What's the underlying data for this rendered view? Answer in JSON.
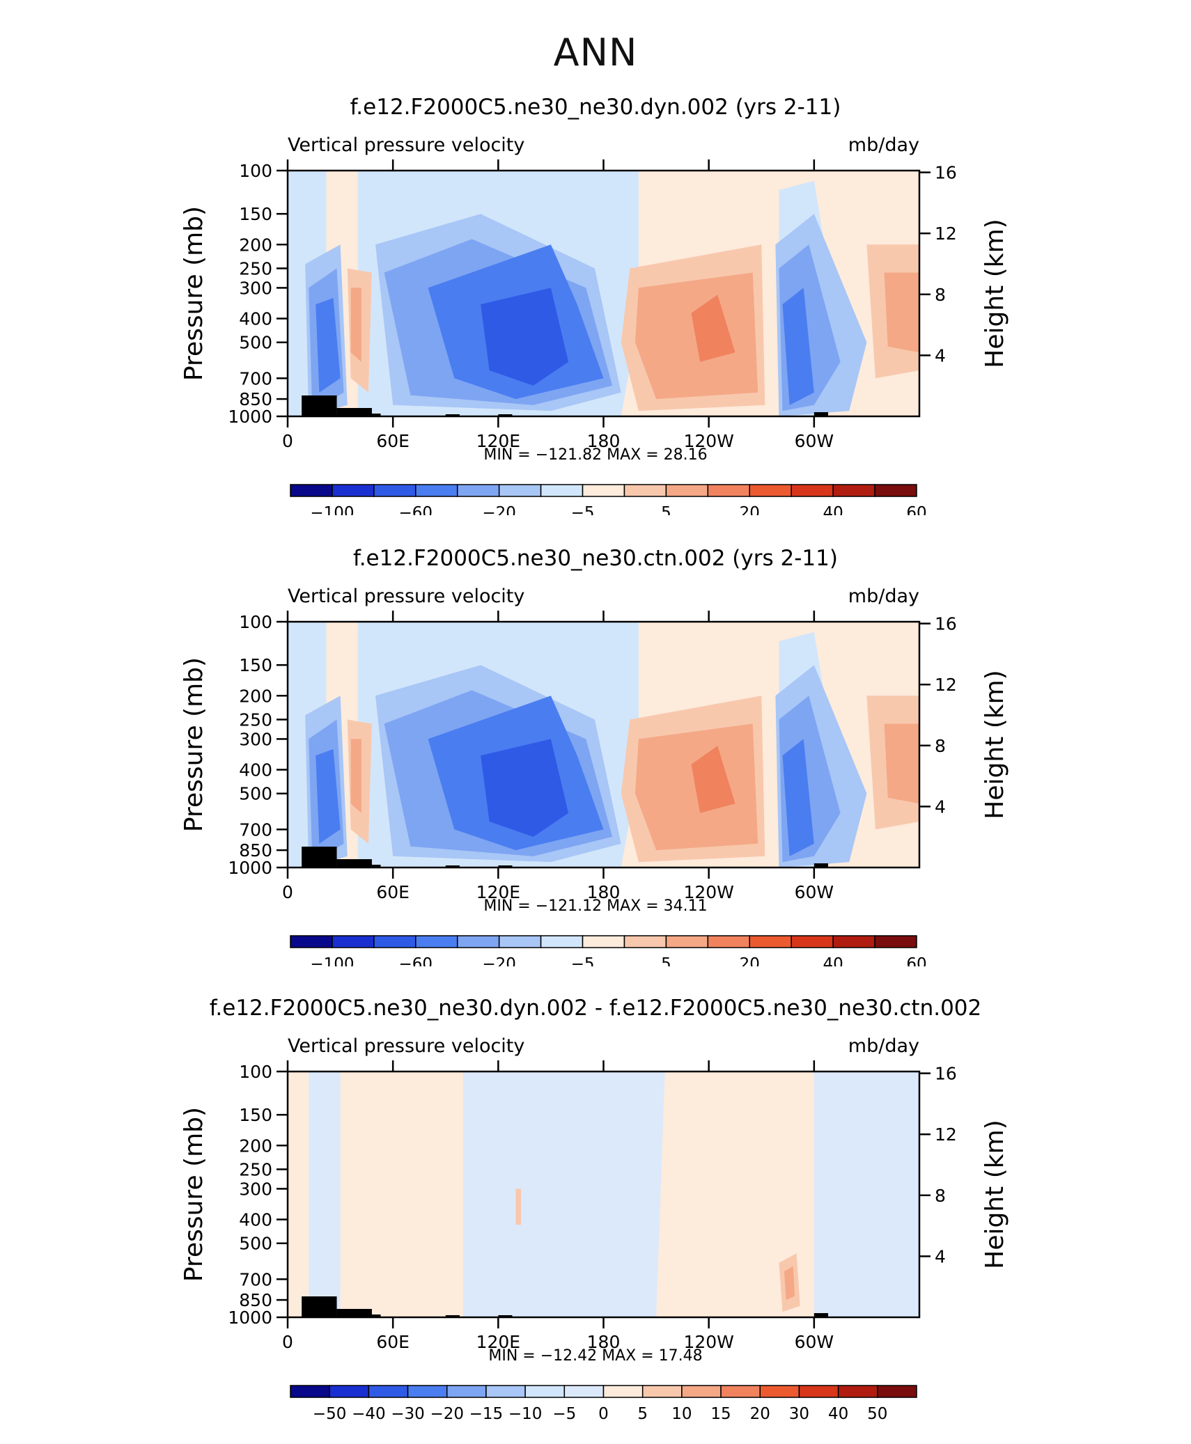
{
  "page": {
    "title": "ANN"
  },
  "chart_data": [
    {
      "type": "heatmap",
      "title": "f.e12.F2000C5.ne30_ne30.dyn.002 (yrs 2-11)",
      "subtitle_left": "Vertical pressure velocity",
      "subtitle_right": "mb/day",
      "ylabel": "Pressure (mb)",
      "ylabel_right": "Height (km)",
      "x_ticks": [
        "0",
        "60E",
        "120E",
        "180",
        "120W",
        "60W"
      ],
      "y_ticks": [
        "100",
        "150",
        "200",
        "250",
        "300",
        "400",
        "500",
        "700",
        "850",
        "1000"
      ],
      "y_right_ticks": [
        "16",
        "12",
        "8",
        "4"
      ],
      "ylim": [
        1000,
        100
      ],
      "xlim": [
        0,
        360
      ],
      "stats": "MIN = −121.82   MAX =   28.16",
      "colorbar_labels": [
        "−100",
        "−60",
        "−20",
        "−5",
        "5",
        "20",
        "40",
        "60"
      ],
      "colorbar_colors": [
        "#08088a",
        "#1a2fd0",
        "#2f5ae6",
        "#4a7df0",
        "#7ea5f2",
        "#a8c6f6",
        "#d2e6fb",
        "#fdebdc",
        "#f8c8ad",
        "#f4a886",
        "#f0825e",
        "#ec5a2f",
        "#d8361a",
        "#b01d10",
        "#7a0d0d"
      ]
    },
    {
      "type": "heatmap",
      "title": "f.e12.F2000C5.ne30_ne30.ctn.002 (yrs 2-11)",
      "subtitle_left": "Vertical pressure velocity",
      "subtitle_right": "mb/day",
      "ylabel": "Pressure (mb)",
      "ylabel_right": "Height (km)",
      "x_ticks": [
        "0",
        "60E",
        "120E",
        "180",
        "120W",
        "60W"
      ],
      "y_ticks": [
        "100",
        "150",
        "200",
        "250",
        "300",
        "400",
        "500",
        "700",
        "850",
        "1000"
      ],
      "y_right_ticks": [
        "16",
        "12",
        "8",
        "4"
      ],
      "ylim": [
        1000,
        100
      ],
      "xlim": [
        0,
        360
      ],
      "stats": "MIN = −121.12   MAX =   34.11",
      "colorbar_labels": [
        "−100",
        "−60",
        "−20",
        "−5",
        "5",
        "20",
        "40",
        "60"
      ],
      "colorbar_colors": [
        "#08088a",
        "#1a2fd0",
        "#2f5ae6",
        "#4a7df0",
        "#7ea5f2",
        "#a8c6f6",
        "#d2e6fb",
        "#fdebdc",
        "#f8c8ad",
        "#f4a886",
        "#f0825e",
        "#ec5a2f",
        "#d8361a",
        "#b01d10",
        "#7a0d0d"
      ]
    },
    {
      "type": "heatmap",
      "title": "f.e12.F2000C5.ne30_ne30.dyn.002 - f.e12.F2000C5.ne30_ne30.ctn.002",
      "subtitle_left": "Vertical pressure velocity",
      "subtitle_right": "mb/day",
      "ylabel": "Pressure (mb)",
      "ylabel_right": "Height (km)",
      "x_ticks": [
        "0",
        "60E",
        "120E",
        "180",
        "120W",
        "60W"
      ],
      "y_ticks": [
        "100",
        "150",
        "200",
        "250",
        "300",
        "400",
        "500",
        "700",
        "850",
        "1000"
      ],
      "y_right_ticks": [
        "16",
        "12",
        "8",
        "4"
      ],
      "ylim": [
        1000,
        100
      ],
      "xlim": [
        0,
        360
      ],
      "stats": "MIN = −12.42   MAX =   17.48",
      "colorbar_labels": [
        "−50",
        "−40",
        "−30",
        "−20",
        "−15",
        "−10",
        "−5",
        "0",
        "5",
        "10",
        "15",
        "20",
        "30",
        "40",
        "50"
      ],
      "colorbar_colors": [
        "#08088a",
        "#1a2fd0",
        "#2f5ae6",
        "#4a7df0",
        "#7ea5f2",
        "#a8c6f6",
        "#d2e6fb",
        "#dce9fb",
        "#fdebdc",
        "#f8c8ad",
        "#f4a886",
        "#f0825e",
        "#ec5a2f",
        "#d8361a",
        "#b01d10",
        "#7a0d0d"
      ]
    }
  ]
}
